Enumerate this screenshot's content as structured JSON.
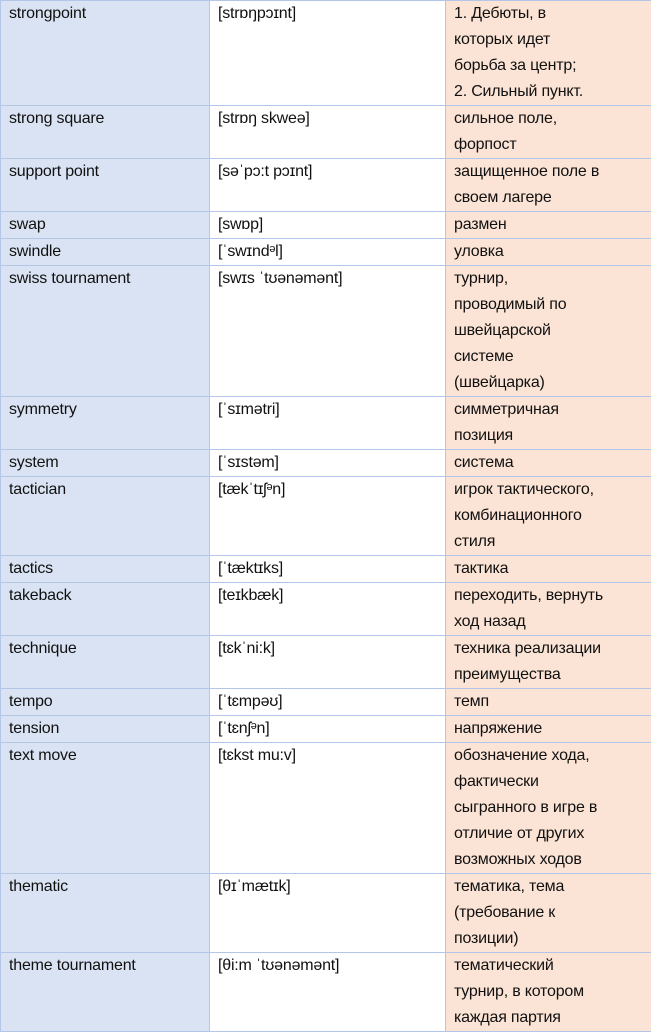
{
  "colors": {
    "term_bg": "#dae3f3",
    "definition_bg": "#fbe4d5",
    "border": "#b4c6e7"
  },
  "rows": [
    {
      "term": "strongpoint",
      "ipa": "[strɒŋpɔɪnt]",
      "definition": "1. Дебюты, в\nкоторых идет\nборьба за центр;\n2. Сильный пункт."
    },
    {
      "term": "strong square",
      "ipa": "[strɒŋ skweə]",
      "definition": "сильное поле,\nфорпост"
    },
    {
      "term": "support point",
      "ipa": "[səˈpɔ:t pɔɪnt]",
      "definition": "защищенное поле в\nсвоем лагере"
    },
    {
      "term": "swap",
      "ipa": "[swɒp]",
      "definition": "размен"
    },
    {
      "term": "swindle",
      "ipa": "[ˈswɪndᵊl]",
      "definition": "уловка"
    },
    {
      "term": "swiss tournament",
      "ipa": "[swɪs ˈtʊənəmənt]",
      "definition": "турнир,\nпроводимый по\nшвейцарской\nсистеме\n(швейцарка)"
    },
    {
      "term": "symmetry",
      "ipa": "[ˈsɪmətri]",
      "definition": "симметричная\nпозиция"
    },
    {
      "term": "system",
      "ipa": "[ˈsɪstəm]",
      "definition": "система"
    },
    {
      "term": "tactician",
      "ipa": "[tækˈtɪʃᵊn]",
      "definition": "игрок тактического,\nкомбинационного\nстиля"
    },
    {
      "term": "tactics",
      "ipa": "[ˈtæktɪks]",
      "definition": "тактика"
    },
    {
      "term": "takeback",
      "ipa": "[teɪkbæk]",
      "definition": "переходить, вернуть\nход назад"
    },
    {
      "term": "technique",
      "ipa": "[tɛkˈni:k]",
      "definition": "техника реализации\nпреимущества"
    },
    {
      "term": "tempo",
      "ipa": "[ˈtɛmpəʊ]",
      "definition": "темп"
    },
    {
      "term": "tension",
      "ipa": "[ˈtɛnʃᵊn]",
      "definition": "напряжение"
    },
    {
      "term": "text move",
      "ipa": "[tɛkst mu:v]",
      "definition": "обозначение хода,\nфактически\nсыгранного в игре в\nотличие от других\nвозможных ходов"
    },
    {
      "term": "thematic",
      "ipa": "[θɪˈmætɪk]",
      "definition": "тематика, тема\n(требование к\nпозиции)"
    },
    {
      "term": "theme tournament",
      "ipa": "[θi:m ˈtʊənəmənt]",
      "definition": "тематический\nтурнир, в котором\nкаждая партия"
    }
  ]
}
